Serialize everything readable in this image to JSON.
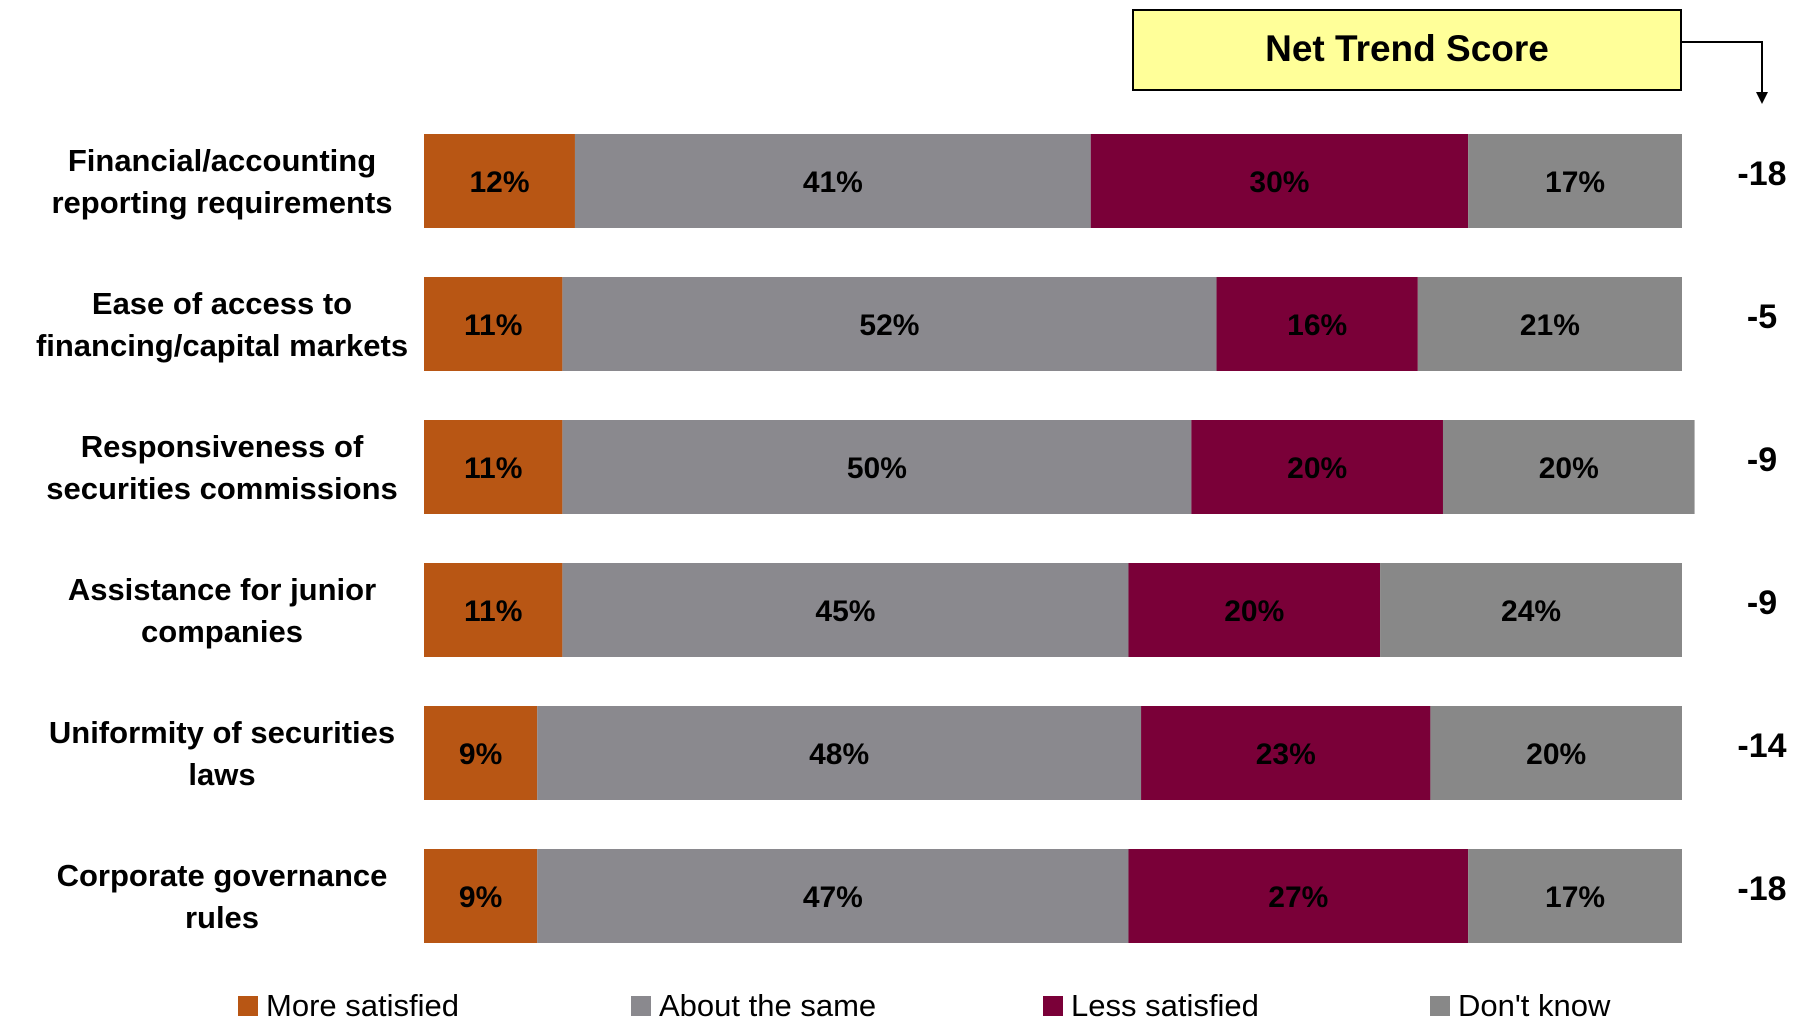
{
  "chart_data": {
    "type": "bar",
    "orientation": "horizontal",
    "stacked": true,
    "value_unit": "%",
    "categories": [
      [
        "Financial/accounting",
        "reporting requirements"
      ],
      [
        "Ease of access to",
        "financing/capital markets"
      ],
      [
        "Responsiveness of",
        "securities commissions"
      ],
      [
        "Assistance for junior",
        "companies"
      ],
      [
        "Uniformity of securities",
        "laws"
      ],
      [
        "Corporate governance",
        "rules"
      ]
    ],
    "series": [
      {
        "name": "More satisfied",
        "color": "#B85614",
        "values": [
          12,
          11,
          11,
          11,
          9,
          9
        ]
      },
      {
        "name": "About the same",
        "color": "#8A898E",
        "values": [
          41,
          52,
          50,
          45,
          48,
          47
        ]
      },
      {
        "name": "Less satisfied",
        "color": "#7A0038",
        "values": [
          30,
          16,
          20,
          20,
          23,
          27
        ]
      },
      {
        "name": "Don't know",
        "color": "#888888",
        "values": [
          17,
          21,
          20,
          24,
          20,
          17
        ]
      }
    ],
    "net_trend_score": {
      "title": "Net Trend Score",
      "box_color": "#FFFF99",
      "values": [
        -18,
        -5,
        -9,
        -9,
        -14,
        -18
      ]
    },
    "legend_position": "bottom",
    "grid": false
  }
}
